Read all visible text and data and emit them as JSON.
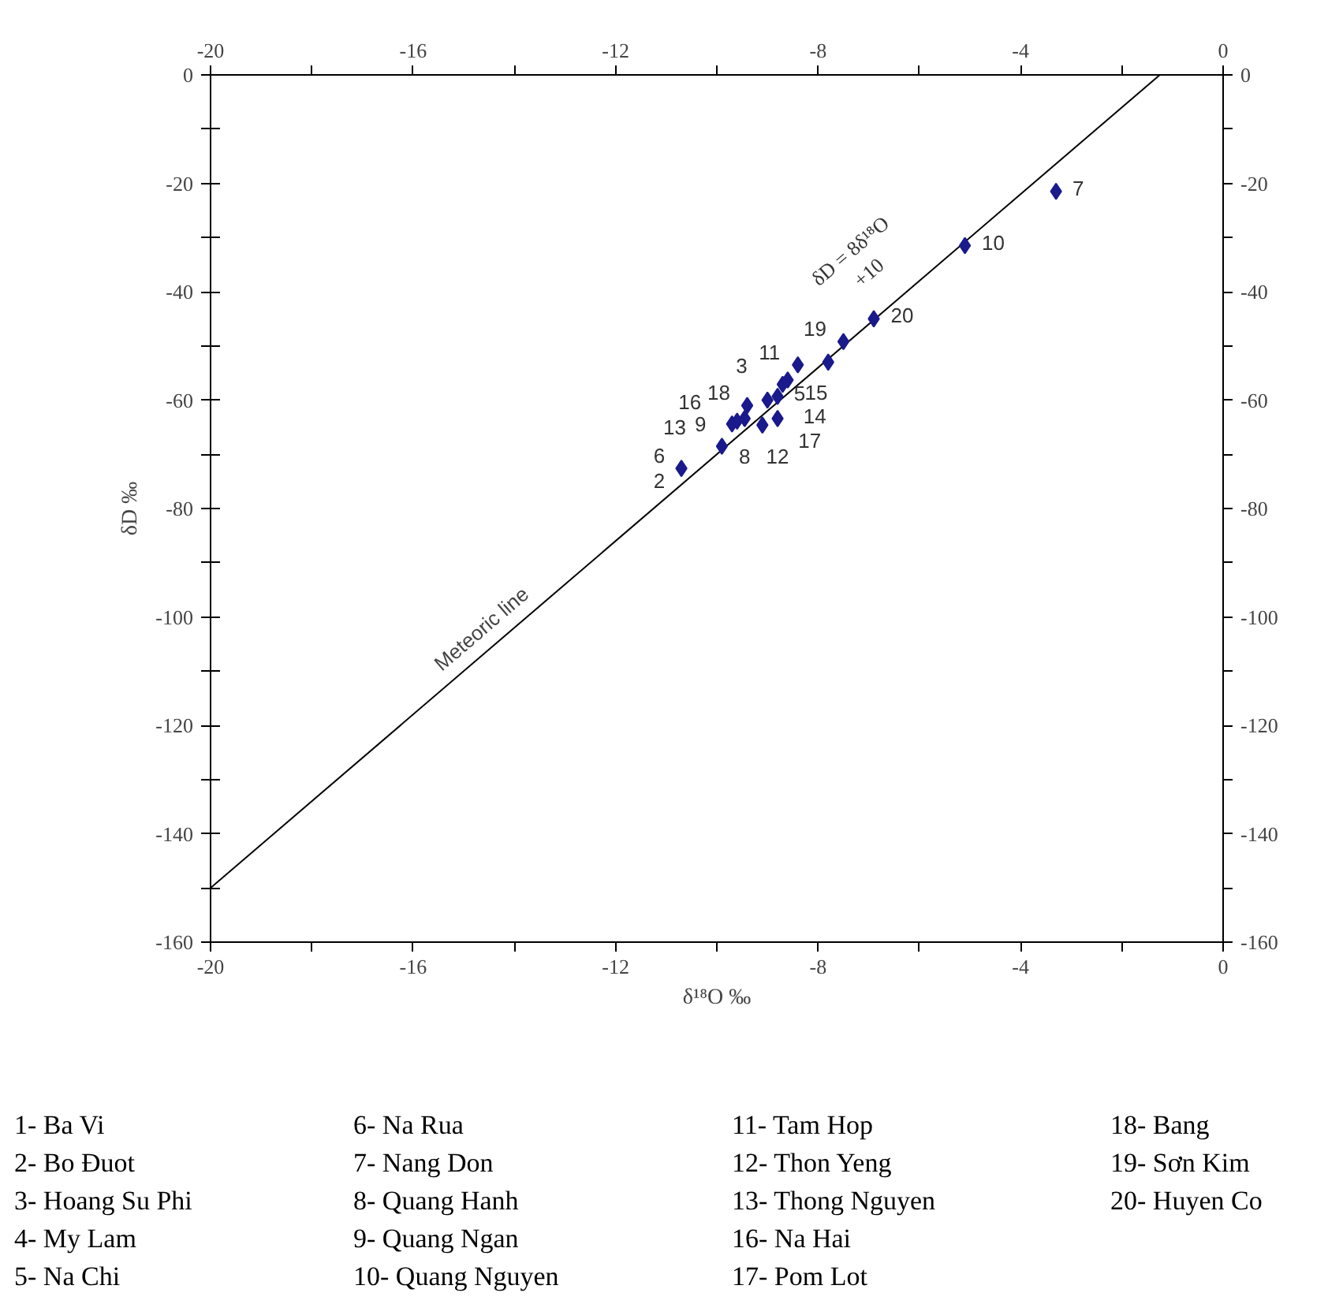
{
  "chart_data": {
    "type": "scatter",
    "xlabel": "δ¹⁸O ‰",
    "ylabel": "δD ‰",
    "xlim": [
      -20,
      0
    ],
    "ylim": [
      -160,
      0
    ],
    "x2lim": [
      -20,
      0
    ],
    "y2lim": [
      -160,
      0
    ],
    "xticks": [
      -20,
      {
        "value": -18,
        "label": null
      },
      -16,
      {
        "value": -14,
        "label": null
      },
      -12,
      {
        "value": -10,
        "label": null
      },
      -8,
      {
        "value": -6,
        "label": null
      },
      -4,
      {
        "value": -2,
        "label": null
      },
      0
    ],
    "x2ticks": [
      -20,
      {
        "value": -18,
        "label": null
      },
      -16,
      {
        "value": -14,
        "label": null
      },
      -12,
      {
        "value": -10,
        "label": null
      },
      -8,
      {
        "value": -6,
        "label": null
      },
      -4,
      {
        "value": -2,
        "label": null
      },
      0
    ],
    "yticks": [
      0,
      {
        "value": -10,
        "label": null
      },
      -20,
      {
        "value": -30,
        "label": null
      },
      -40,
      {
        "value": -50,
        "label": null
      },
      -60,
      {
        "value": -70,
        "label": null
      },
      -80,
      {
        "value": -90,
        "label": null
      },
      -100,
      {
        "value": -110,
        "label": null
      },
      -120,
      {
        "value": -130,
        "label": null
      },
      -140,
      {
        "value": -150,
        "label": null
      },
      -160
    ],
    "y2ticks": [
      0,
      {
        "value": -10,
        "label": null
      },
      -20,
      {
        "value": -30,
        "label": null
      },
      -40,
      {
        "value": -50,
        "label": null
      },
      -60,
      {
        "value": -70,
        "label": null
      },
      -80,
      {
        "value": -90,
        "label": null
      },
      -100,
      {
        "value": -110,
        "label": null
      },
      -120,
      {
        "value": -130,
        "label": null
      },
      -140,
      {
        "value": -150,
        "label": null
      },
      -160
    ],
    "grid": false,
    "legend": false,
    "series": [
      {
        "type": "line",
        "name": "Meteoric line",
        "color": "#000000",
        "x": [
          -20,
          -1.25
        ],
        "values": [
          -150,
          0
        ]
      },
      {
        "color": "#1a1a8c",
        "marker": "diamond",
        "x": [
          -3.3,
          -5.1,
          -6.9,
          -7.5,
          -7.8,
          -8.4,
          -8.6,
          -8.7,
          -8.8,
          -9.0,
          -9.4,
          -8.8,
          -9.1,
          -9.7,
          -9.6,
          -9.45,
          -9.9,
          -10.7
        ],
        "values": [
          -21.5,
          -31.5,
          -45,
          -49.2,
          -53,
          -53.5,
          -56.3,
          -57.1,
          -59.3,
          -60,
          -61,
          -63.4,
          -64.6,
          -64.4,
          -63.9,
          -63.4,
          -68.5,
          -72.6
        ]
      }
    ],
    "annotations": [
      "δD = 8δ¹⁸O\n+10",
      {
        "text": "7",
        "x": -3.3,
        "y": -21.5
      },
      {
        "text": "10",
        "x": -5.1,
        "y": -31.5
      },
      {
        "text": "20",
        "x": -6.9,
        "y": -45
      },
      {
        "text": "19",
        "x": -7.5,
        "y": -49.2
      },
      {
        "text": "11",
        "x": -8.4,
        "y": -53.5
      },
      {
        "text": "15",
        "x": -8.6,
        "y": -56.3
      },
      {
        "text": "3",
        "x": -8.7,
        "y": -57.1
      },
      {
        "text": "5",
        "x": -8.8,
        "y": -59.3
      },
      {
        "text": "14",
        "x": -9.0,
        "y": -60
      },
      {
        "text": "18",
        "x": -9.4,
        "y": -61
      },
      {
        "text": "12",
        "x": -8.8,
        "y": -63.4
      },
      {
        "text": "17",
        "x": -9.1,
        "y": -64.6
      },
      {
        "text": "8",
        "x": -9.45,
        "y": -63.4
      },
      {
        "text": "9",
        "x": -9.7,
        "y": -64.4
      },
      {
        "text": "13",
        "x": -9.9,
        "y": -68.5
      },
      {
        "text": "16",
        "x": -9.6,
        "y": -63.9
      },
      {
        "text": "6",
        "x": -10.7,
        "y": -72.6
      },
      {
        "text": "2",
        "x": -10.7,
        "y": -72.6
      },
      "1- Ba Vi",
      "2- Bo Đuot",
      "3- Hoang Su Phi",
      "4- My Lam",
      "5- Na Chi",
      "6- Na Rua",
      "7- Nang Don",
      "8- Quang Hanh",
      "9- Quang Ngan",
      "10- Quang Nguyen",
      "11- Tam Hop",
      "12- Thon Yeng",
      "13- Thong Nguyen",
      "16- Na Hai",
      "17- Pom Lot",
      "18- Bang",
      "19- Sơn Kim",
      "20- Huyen Co"
    ]
  }
}
